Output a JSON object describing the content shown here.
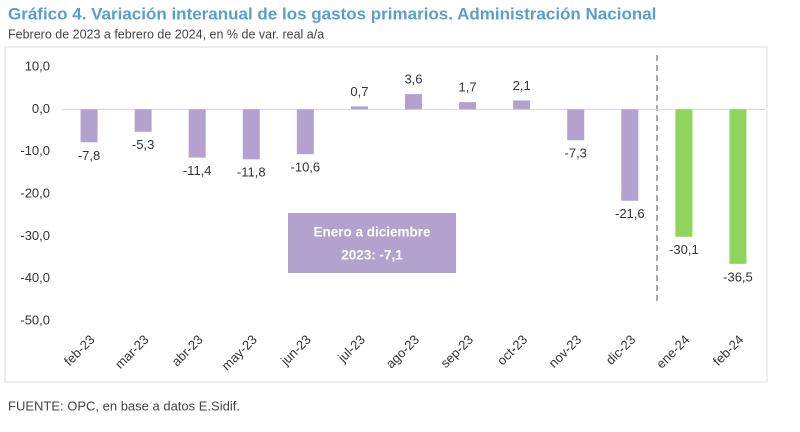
{
  "chart_data": {
    "type": "bar",
    "title": "Gráfico 4. Variación interanual de los gastos primarios. Administración Nacional",
    "subtitle": "Febrero de 2023 a febrero de 2024, en % de var. real a/a",
    "categories": [
      "feb-23",
      "mar-23",
      "abr-23",
      "may-23",
      "jun-23",
      "jul-23",
      "ago-23",
      "sep-23",
      "oct-23",
      "nov-23",
      "dic-23",
      "ene-24",
      "feb-24"
    ],
    "values": [
      -7.8,
      -5.3,
      -11.4,
      -11.8,
      -10.6,
      0.7,
      3.6,
      1.7,
      2.1,
      -7.3,
      -21.6,
      -30.1,
      -36.5
    ],
    "value_labels": [
      "-7,8",
      "-5,3",
      "-11,4",
      "-11,8",
      "-10,6",
      "0,7",
      "3,6",
      "1,7",
      "2,1",
      "-7,3",
      "-21,6",
      "-30,1",
      "-36,5"
    ],
    "colors": [
      "#b3a2cd",
      "#b3a2cd",
      "#b3a2cd",
      "#b3a2cd",
      "#b3a2cd",
      "#b3a2cd",
      "#b3a2cd",
      "#b3a2cd",
      "#b3a2cd",
      "#b3a2cd",
      "#b3a2cd",
      "#8fd45c",
      "#8fd45c"
    ],
    "ylim": [
      -50,
      10
    ],
    "yticks": [
      {
        "value": 10,
        "label": "10,0"
      },
      {
        "value": 0,
        "label": "0,0"
      },
      {
        "value": -10,
        "label": "-10,0"
      },
      {
        "value": -20,
        "label": "-20,0"
      },
      {
        "value": -30,
        "label": "-30,0"
      },
      {
        "value": -40,
        "label": "-40,0"
      },
      {
        "value": -50,
        "label": "-50,0"
      }
    ],
    "annotation": [
      "Enero a diciembre",
      "2023: -7,1"
    ],
    "source": "FUENTE: OPC, en base a datos E.Sidif."
  }
}
